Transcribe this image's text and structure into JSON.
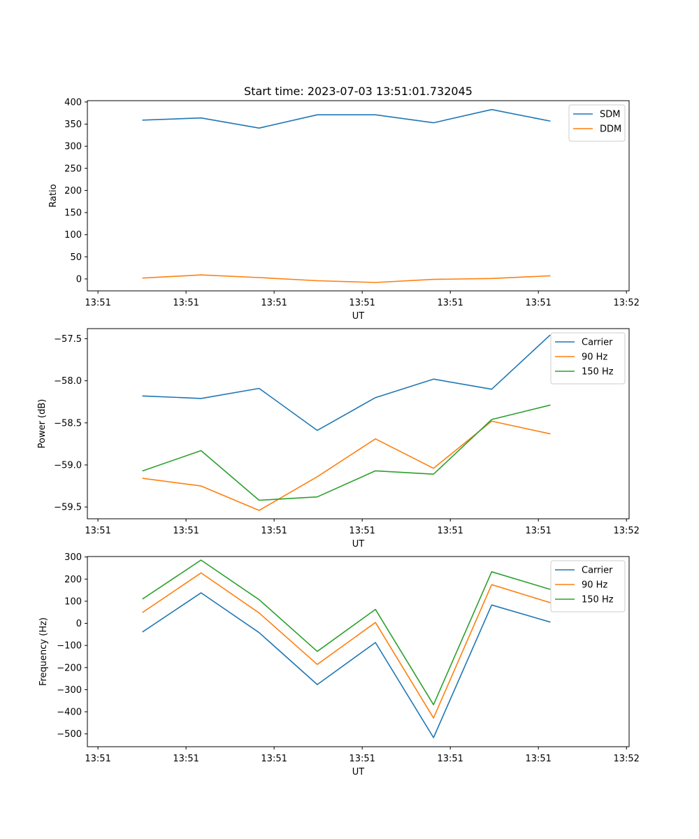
{
  "chart_data": [
    {
      "type": "line",
      "title": "Start time: 2023-07-03 13:51:01.732045",
      "xlabel": "UT",
      "ylabel": "Ratio",
      "ylim": [
        -27,
        403
      ],
      "yticks": [
        0,
        50,
        100,
        150,
        200,
        250,
        300,
        350,
        400
      ],
      "ytick_labels": [
        "0",
        "50",
        "100",
        "150",
        "200",
        "250",
        "300",
        "350",
        "400"
      ],
      "xlim": [
        -0.55,
        5.6
      ],
      "xticks": [
        -0.43,
        0.57,
        1.57,
        2.57,
        3.57,
        4.57,
        5.57
      ],
      "xtick_labels": [
        "13:51",
        "13:51",
        "13:51",
        "13:51",
        "13:51",
        "13:51",
        "13:52"
      ],
      "x": [
        0.08,
        0.74,
        1.4,
        2.06,
        2.72,
        3.38,
        4.04,
        4.7
      ],
      "series": [
        {
          "name": "SDM",
          "color": "#1f77b4",
          "values": [
            359,
            364,
            341,
            371,
            371,
            353,
            383,
            357
          ]
        },
        {
          "name": "DDM",
          "color": "#ff7f0e",
          "values": [
            2,
            9,
            3,
            -4,
            -8,
            -1,
            1,
            7
          ]
        }
      ],
      "legend": "top-right"
    },
    {
      "type": "line",
      "title": "",
      "xlabel": "UT",
      "ylabel": "Power (dB)",
      "ylim": [
        -59.64,
        -57.38
      ],
      "yticks": [
        -59.5,
        -59.0,
        -58.5,
        -58.0,
        -57.5
      ],
      "ytick_labels": [
        "−59.5",
        "−59.0",
        "−58.5",
        "−58.0",
        "−57.5"
      ],
      "xlim": [
        -0.55,
        5.6
      ],
      "xticks": [
        -0.43,
        0.57,
        1.57,
        2.57,
        3.57,
        4.57,
        5.57
      ],
      "xtick_labels": [
        "13:51",
        "13:51",
        "13:51",
        "13:51",
        "13:51",
        "13:51",
        "13:52"
      ],
      "x": [
        0.08,
        0.74,
        1.4,
        2.06,
        2.72,
        3.38,
        4.04,
        4.7
      ],
      "series": [
        {
          "name": "Carrier",
          "color": "#1f77b4",
          "values": [
            -58.18,
            -58.21,
            -58.09,
            -58.59,
            -58.2,
            -57.98,
            -58.1,
            -57.46
          ]
        },
        {
          "name": "90 Hz",
          "color": "#ff7f0e",
          "values": [
            -59.16,
            -59.25,
            -59.54,
            -59.14,
            -58.69,
            -59.04,
            -58.48,
            -58.63
          ]
        },
        {
          "name": "150 Hz",
          "color": "#2ca02c",
          "values": [
            -59.07,
            -58.83,
            -59.42,
            -59.38,
            -59.07,
            -59.11,
            -58.46,
            -58.29
          ]
        }
      ],
      "legend": "top-right"
    },
    {
      "type": "line",
      "title": "",
      "xlabel": "UT",
      "ylabel": "Frequency (Hz)",
      "ylim": [
        -558,
        302
      ],
      "yticks": [
        -500,
        -400,
        -300,
        -200,
        -100,
        0,
        100,
        200,
        300
      ],
      "ytick_labels": [
        "−500",
        "−400",
        "−300",
        "−200",
        "−100",
        "0",
        "100",
        "200",
        "300"
      ],
      "xlim": [
        -0.55,
        5.6
      ],
      "xticks": [
        -0.43,
        0.57,
        1.57,
        2.57,
        3.57,
        4.57,
        5.57
      ],
      "xtick_labels": [
        "13:51",
        "13:51",
        "13:51",
        "13:51",
        "13:51",
        "13:51",
        "13:52"
      ],
      "x": [
        0.08,
        0.74,
        1.4,
        2.06,
        2.72,
        3.38,
        4.04,
        4.7
      ],
      "series": [
        {
          "name": "Carrier",
          "color": "#1f77b4",
          "values": [
            -38,
            138,
            -42,
            -277,
            -87,
            -517,
            83,
            6
          ]
        },
        {
          "name": "90 Hz",
          "color": "#ff7f0e",
          "values": [
            50,
            228,
            47,
            -186,
            4,
            -428,
            175,
            94
          ]
        },
        {
          "name": "150 Hz",
          "color": "#2ca02c",
          "values": [
            111,
            286,
            107,
            -127,
            63,
            -368,
            233,
            154
          ]
        }
      ],
      "legend": "top-right"
    }
  ]
}
